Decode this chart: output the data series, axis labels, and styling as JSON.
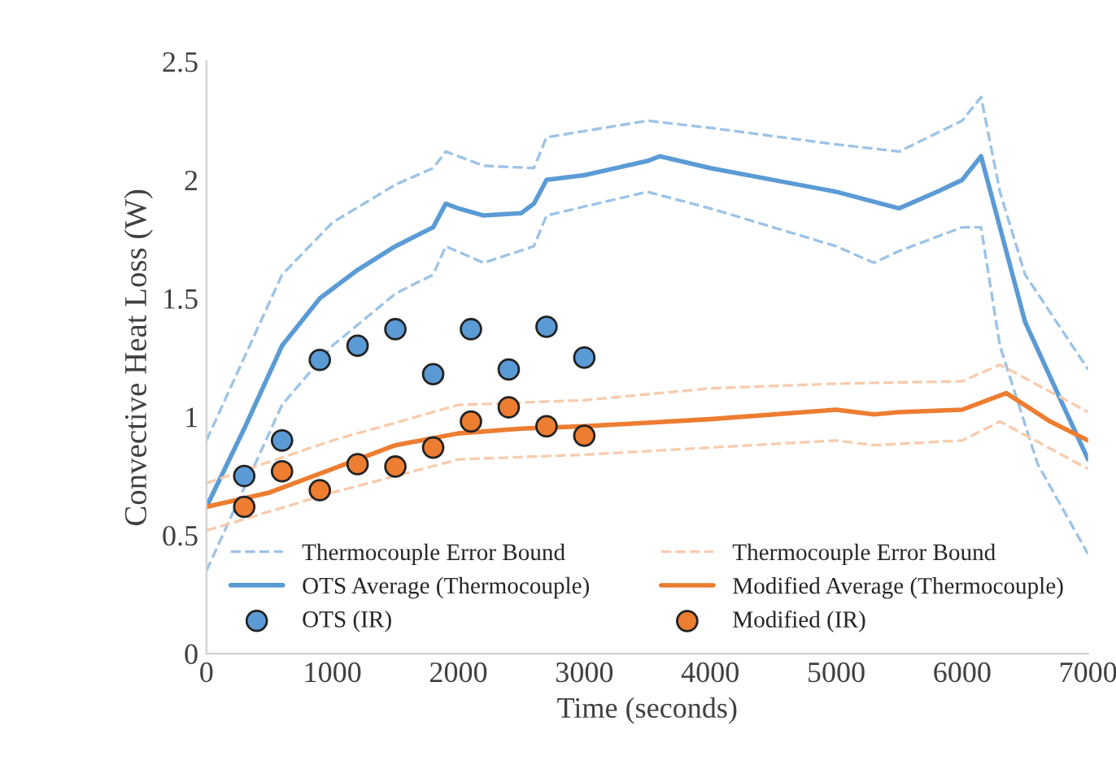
{
  "chart_data": {
    "type": "line",
    "xlabel": "Time (seconds)",
    "ylabel": "Convective Heat Loss (W)",
    "xlim": [
      0,
      7000
    ],
    "xticks": [
      0,
      1000,
      2000,
      3000,
      4000,
      5000,
      6000,
      7000
    ],
    "ylim": [
      0,
      2.5
    ],
    "yticks": [
      0,
      0.5,
      1,
      1.5,
      2,
      2.5
    ],
    "grid": false,
    "legend": "bottom",
    "series": [
      {
        "name": "Thermocouple Error Bound",
        "line_style": "dashed",
        "color": "#9dc3e6",
        "x": [
          0,
          300,
          600,
          1000,
          1500,
          1800,
          1900,
          2200,
          2600,
          2700,
          3500,
          4000,
          5000,
          5500,
          6000,
          6150,
          6300,
          6500,
          7000
        ],
        "values": [
          0.9,
          1.25,
          1.6,
          1.82,
          1.98,
          2.05,
          2.12,
          2.06,
          2.05,
          2.18,
          2.25,
          2.22,
          2.15,
          2.12,
          2.25,
          2.35,
          1.95,
          1.6,
          1.2
        ]
      },
      {
        "line_style": "dashed",
        "color": "#9dc3e6",
        "x": [
          0,
          300,
          600,
          1000,
          1500,
          1800,
          1900,
          2200,
          2600,
          2700,
          3500,
          4000,
          4500,
          5000,
          5300,
          5500,
          6000,
          6150,
          6300,
          6600,
          7000
        ],
        "values": [
          0.35,
          0.7,
          1.05,
          1.3,
          1.52,
          1.6,
          1.72,
          1.65,
          1.72,
          1.85,
          1.95,
          1.88,
          1.8,
          1.72,
          1.65,
          1.7,
          1.8,
          1.8,
          1.3,
          0.8,
          0.42
        ]
      },
      {
        "name": "OTS Average (Thermocouple)",
        "line_style": "solid",
        "color": "#5b9bd5",
        "x": [
          0,
          300,
          600,
          900,
          1200,
          1500,
          1800,
          1900,
          2000,
          2200,
          2500,
          2600,
          2700,
          3000,
          3500,
          3600,
          4000,
          4500,
          5000,
          5500,
          5800,
          6000,
          6150,
          6300,
          6500,
          6800,
          7000
        ],
        "values": [
          0.62,
          0.95,
          1.3,
          1.5,
          1.62,
          1.72,
          1.8,
          1.9,
          1.88,
          1.85,
          1.86,
          1.9,
          2.0,
          2.02,
          2.08,
          2.1,
          2.05,
          2.0,
          1.95,
          1.88,
          1.95,
          2.0,
          2.1,
          1.8,
          1.4,
          1.05,
          0.82
        ]
      },
      {
        "name": "OTS (IR)",
        "type": "scatter",
        "marker": "circle",
        "color": "#5b9bd5",
        "x": [
          300,
          600,
          900,
          1200,
          1500,
          1800,
          2100,
          2400,
          2700,
          3000
        ],
        "values": [
          0.75,
          0.9,
          1.24,
          1.3,
          1.37,
          1.18,
          1.37,
          1.2,
          1.38,
          1.25
        ]
      },
      {
        "name": "Thermocouple Error Bound",
        "line_style": "dashed",
        "color": "#f8cbad",
        "x": [
          0,
          1000,
          2000,
          3000,
          4000,
          5000,
          6000,
          6300,
          7000
        ],
        "values": [
          0.72,
          0.9,
          1.05,
          1.07,
          1.12,
          1.14,
          1.15,
          1.22,
          1.02
        ]
      },
      {
        "line_style": "dashed",
        "color": "#f8cbad",
        "x": [
          0,
          1000,
          2000,
          3000,
          4000,
          5000,
          5300,
          6000,
          6300,
          7000
        ],
        "values": [
          0.52,
          0.68,
          0.82,
          0.84,
          0.87,
          0.9,
          0.88,
          0.9,
          0.98,
          0.78
        ]
      },
      {
        "name": "Modified Average (Thermocouple)",
        "line_style": "solid",
        "color": "#ed7d31",
        "x": [
          0,
          500,
          1000,
          1500,
          2000,
          2500,
          3000,
          4000,
          5000,
          5300,
          5500,
          6000,
          6350,
          6700,
          7000
        ],
        "values": [
          0.62,
          0.68,
          0.78,
          0.88,
          0.93,
          0.95,
          0.96,
          0.99,
          1.03,
          1.01,
          1.02,
          1.03,
          1.1,
          0.98,
          0.9
        ]
      },
      {
        "name": "Modified (IR)",
        "type": "scatter",
        "marker": "circle",
        "color": "#ed7d31",
        "x": [
          300,
          600,
          900,
          1200,
          1500,
          1800,
          2100,
          2400,
          2700,
          3000
        ],
        "values": [
          0.62,
          0.77,
          0.69,
          0.8,
          0.79,
          0.87,
          0.98,
          1.04,
          0.96,
          0.92
        ]
      }
    ]
  }
}
